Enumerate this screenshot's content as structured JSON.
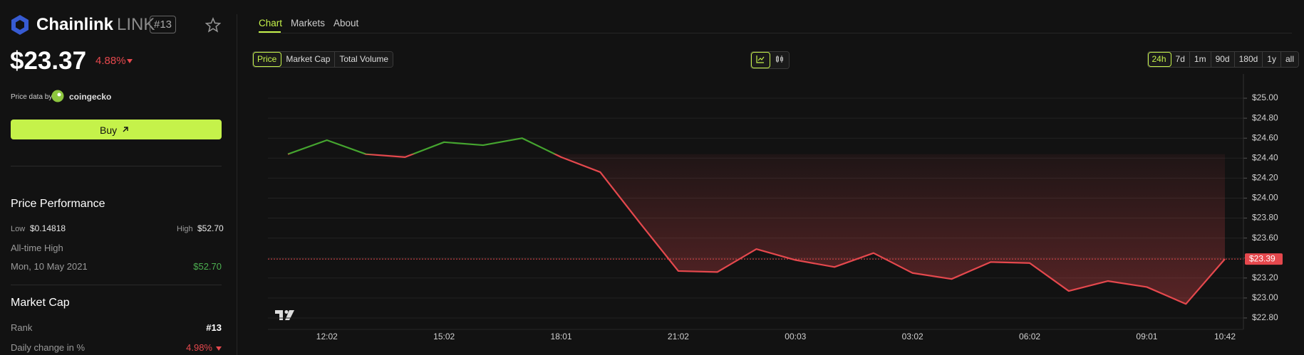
{
  "header": {
    "name": "Chainlink",
    "symbol": "LINK",
    "rank": "#13",
    "price": "$23.37",
    "change": "4.88%",
    "price_source_label": "Price data by",
    "price_source": "coingecko",
    "buy": "Buy"
  },
  "tabs": [
    "Chart",
    "Markets",
    "About"
  ],
  "metric_buttons": [
    "Price",
    "Market Cap",
    "Total Volume"
  ],
  "range_buttons": [
    "24h",
    "7d",
    "1m",
    "90d",
    "180d",
    "1y",
    "all"
  ],
  "price_performance": {
    "title": "Price Performance",
    "low_label": "Low",
    "low": "$0.14818",
    "high_label": "High",
    "high": "$52.70",
    "ath_label": "All-time High",
    "ath_date": "Mon, 10 May 2021",
    "ath_value": "$52.70"
  },
  "market_cap": {
    "title": "Market Cap",
    "rank_label": "Rank",
    "rank": "#13",
    "daily_change_label": "Daily change in %",
    "daily_change": "4.98%"
  },
  "chart_data": {
    "type": "line",
    "categories": [
      null,
      "12:02",
      null,
      null,
      "15:02",
      null,
      null,
      "18:01",
      null,
      null,
      "21:02",
      null,
      null,
      "00:03",
      null,
      null,
      "03:02",
      null,
      null,
      "06:02",
      null,
      null,
      "09:01",
      null,
      "10:42"
    ],
    "values": [
      24.44,
      24.58,
      24.44,
      24.41,
      24.56,
      24.53,
      24.6,
      24.41,
      24.26,
      23.76,
      23.27,
      23.26,
      23.49,
      23.38,
      23.31,
      23.45,
      23.25,
      23.19,
      23.36,
      23.35,
      23.07,
      23.17,
      23.11,
      22.94,
      23.39
    ],
    "up_color": "#45a52f",
    "down_color": "#e5484d",
    "ylim": [
      22.7,
      25.1
    ],
    "yticks": [
      {
        "value": 22.8,
        "label": "$22.80"
      },
      {
        "value": 23.0,
        "label": "$23.00"
      },
      {
        "value": 23.2,
        "label": "$23.20"
      },
      {
        "value": 23.4,
        "label": "$23.40"
      },
      {
        "value": 23.6,
        "label": "$23.60"
      },
      {
        "value": 23.8,
        "label": "$23.80"
      },
      {
        "value": 24.0,
        "label": "$24.00"
      },
      {
        "value": 24.2,
        "label": "$24.20"
      },
      {
        "value": 24.4,
        "label": "$24.40"
      },
      {
        "value": 24.6,
        "label": "$24.60"
      },
      {
        "value": 24.8,
        "label": "$24.80"
      },
      {
        "value": 25.0,
        "label": "$25.00"
      }
    ],
    "grid": true,
    "price_line": {
      "value": 23.39,
      "label": "$23.39"
    }
  }
}
